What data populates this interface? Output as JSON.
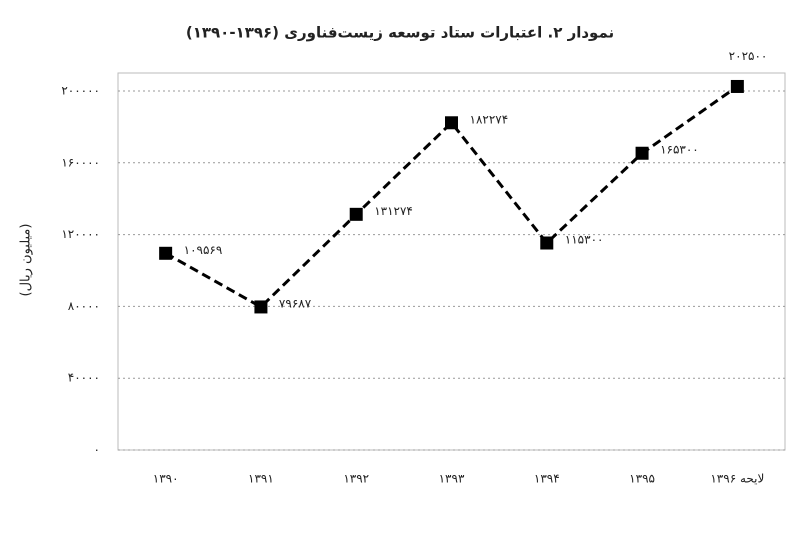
{
  "chart_data": {
    "type": "line",
    "title": "نمودار ۲. اعتبارات ستاد توسعه زیست‌فناوری (۱۳۹۶-۱۳۹۰)",
    "y_label": "(میلیون ریال)",
    "categories": [
      "۱۳۹۰",
      "۱۳۹۱",
      "۱۳۹۲",
      "۱۳۹۳",
      "۱۳۹۴",
      "۱۳۹۵",
      "لایحه ۱۳۹۶"
    ],
    "values": [
      109569,
      79687,
      131274,
      182274,
      115300,
      165300,
      202500
    ],
    "value_labels": [
      "۱۰۹۵۶۹",
      "۷۹۶۸۷",
      "۱۳۱۲۷۴",
      "۱۸۲۲۷۴",
      "۱۱۵۳۰۰",
      "۱۶۵۳۰۰",
      "۲۰۲۵۰۰"
    ],
    "color": "#000000",
    "ylim": [
      0,
      210000
    ],
    "yticks": [
      {
        "value": 0,
        "label": "۰"
      },
      {
        "value": 40000,
        "label": "۴۰۰۰۰"
      },
      {
        "value": 80000,
        "label": "۸۰۰۰۰"
      },
      {
        "value": 120000,
        "label": "۱۲۰۰۰۰"
      },
      {
        "value": 160000,
        "label": "۱۶۰۰۰۰"
      },
      {
        "value": 200000,
        "label": "۲۰۰۰۰۰"
      }
    ],
    "grid": true
  }
}
